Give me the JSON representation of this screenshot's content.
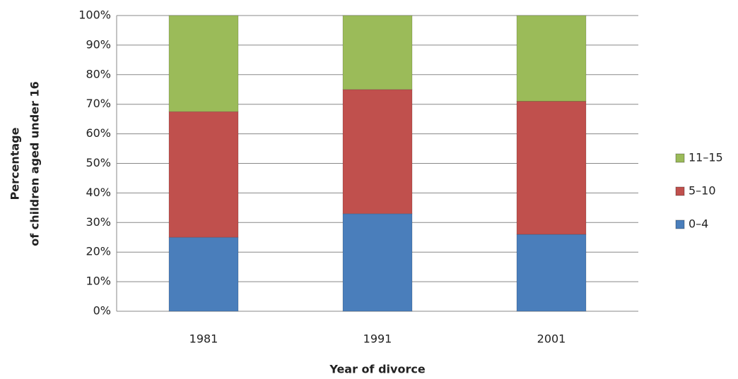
{
  "chart_data": {
    "type": "stacked-bar",
    "xlabel": "Year of divorce",
    "ylabel": [
      "Percentage",
      "of children aged under 16"
    ],
    "categories": [
      "1981",
      "1991",
      "2001"
    ],
    "series": [
      {
        "name": "0–4",
        "color": "#4a7ebb",
        "values": [
          25,
          33,
          26
        ]
      },
      {
        "name": "5–10",
        "color": "#c0504d",
        "values": [
          42.5,
          42,
          45
        ]
      },
      {
        "name": "11–15",
        "color": "#9bbb59",
        "values": [
          32.5,
          25,
          29
        ]
      }
    ],
    "ylim": [
      0,
      100
    ],
    "yticks": [
      {
        "value": 0,
        "label": "0%"
      },
      {
        "value": 10,
        "label": "10%"
      },
      {
        "value": 20,
        "label": "20%"
      },
      {
        "value": 30,
        "label": "30%"
      },
      {
        "value": 40,
        "label": "40%"
      },
      {
        "value": 50,
        "label": "50%"
      },
      {
        "value": 60,
        "label": "60%"
      },
      {
        "value": 70,
        "label": "70%"
      },
      {
        "value": 80,
        "label": "80%"
      },
      {
        "value": 90,
        "label": "90%"
      },
      {
        "value": 100,
        "label": "100%"
      }
    ],
    "grid": true,
    "legend": "right"
  }
}
